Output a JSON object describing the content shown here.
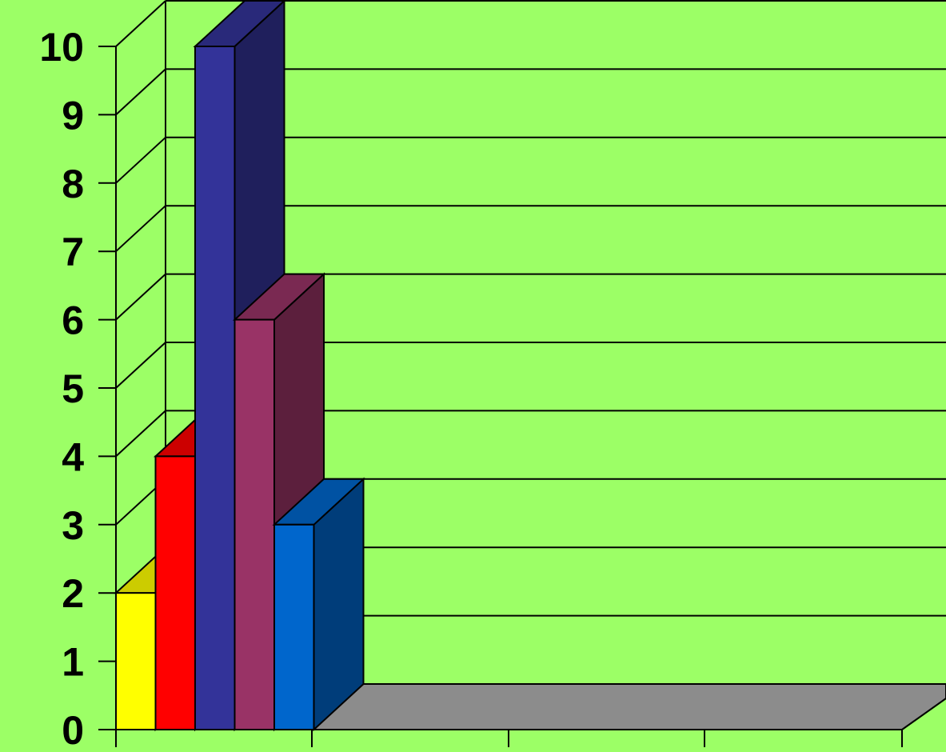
{
  "chart_data": {
    "type": "bar",
    "three_d": true,
    "title": "",
    "xlabel": "",
    "ylabel": "",
    "ylim": [
      0,
      10
    ],
    "yticks": [
      "0",
      "1",
      "2",
      "3",
      "4",
      "5",
      "6",
      "7",
      "8",
      "9",
      "10"
    ],
    "grid": true,
    "legend": "none",
    "bars": [
      {
        "value": 2,
        "color": "#ffff00"
      },
      {
        "value": 4,
        "color": "#ff0000"
      },
      {
        "value": 10,
        "color": "#333399"
      },
      {
        "value": 6,
        "color": "#993366"
      },
      {
        "value": 3,
        "color": "#0066cc"
      }
    ],
    "colors": {
      "background": "#9cff66",
      "floor": "#8c8c8c",
      "grid": "#000000"
    }
  }
}
